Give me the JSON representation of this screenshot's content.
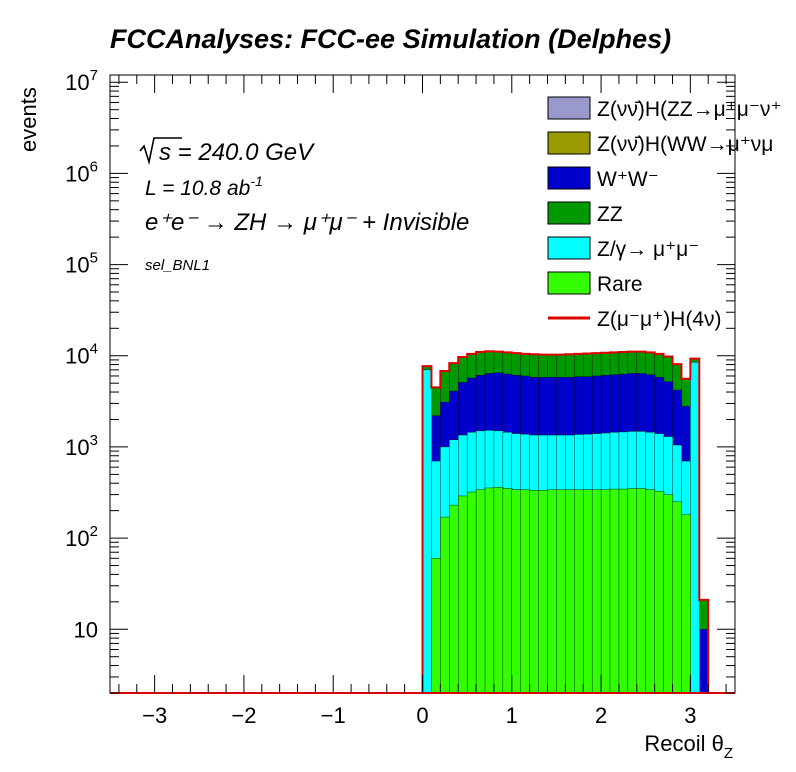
{
  "chart_data": {
    "type": "histogram-stacked",
    "title": "FCCAnalyses: FCC-ee Simulation (Delphes)",
    "xlabel": "Recoil θ",
    "xlabel_sub": "Z",
    "ylabel": "events",
    "xlim": [
      -3.5,
      3.5
    ],
    "ylim": [
      2,
      12000000
    ],
    "yscale": "log",
    "x_ticks": [
      -3,
      -2,
      -1,
      0,
      1,
      2,
      3
    ],
    "x_tick_labels": [
      "−3",
      "−2",
      "−1",
      "0",
      "1",
      "2",
      "3"
    ],
    "y_ticks": [
      {
        "value": 10,
        "base": "10",
        "exp": ""
      },
      {
        "value": 100,
        "base": "10",
        "exp": "2"
      },
      {
        "value": 1000,
        "base": "10",
        "exp": "3"
      },
      {
        "value": 10000,
        "base": "10",
        "exp": "4"
      },
      {
        "value": 100000,
        "base": "10",
        "exp": "5"
      },
      {
        "value": 1000000,
        "base": "10",
        "exp": "6"
      },
      {
        "value": 10000000,
        "base": "10",
        "exp": "7"
      }
    ],
    "annotations": {
      "sqrt_s": "s = 240.0 GeV",
      "lumi": "L = 10.8 ab",
      "lumi_exp": "-1",
      "process": "e⁺e⁻ → ZH → μ⁺μ⁻ + Invisible",
      "selection": "sel_BNL1"
    },
    "legend_position": "top-right",
    "legend": [
      {
        "label": "Z(νν̄)H(ZZ→μ⁺μ⁻ν⁺",
        "color": "#9999cc",
        "kind": "fill"
      },
      {
        "label": "Z(νν̄)H(WW→μ⁺νμ",
        "color": "#999900",
        "kind": "fill"
      },
      {
        "label": "W⁺W⁻",
        "color": "#0000cc",
        "kind": "fill"
      },
      {
        "label": "ZZ",
        "color": "#009900",
        "kind": "fill"
      },
      {
        "label": "Z/γ→ μ⁺μ⁻",
        "color": "#00ffff",
        "kind": "fill"
      },
      {
        "label": "Rare",
        "color": "#33ff00",
        "kind": "fill"
      },
      {
        "label": "Z(μ⁻μ⁺)H(4ν)",
        "color": "#dd0000",
        "kind": "line"
      }
    ],
    "bin_width": 0.1,
    "bins_x_low": [
      0.0,
      0.1,
      0.2,
      0.3,
      0.4,
      0.5,
      0.6,
      0.7,
      0.8,
      0.9,
      1.0,
      1.1,
      1.2,
      1.3,
      1.4,
      1.5,
      1.6,
      1.7,
      1.8,
      1.9,
      2.0,
      2.1,
      2.2,
      2.3,
      2.4,
      2.5,
      2.6,
      2.7,
      2.8,
      2.9,
      3.0,
      3.1,
      3.2
    ],
    "stack_order_bottom_to_top": [
      "Rare",
      "Z/γ→ μ⁺μ⁻",
      "ZZ",
      "W⁺W⁻"
    ],
    "cumulative_tops": {
      "Rare": [
        0,
        60,
        170,
        230,
        290,
        320,
        340,
        355,
        360,
        350,
        340,
        340,
        335,
        335,
        340,
        340,
        340,
        340,
        340,
        340,
        340,
        345,
        345,
        350,
        350,
        340,
        325,
        300,
        250,
        180,
        0,
        0,
        0
      ],
      "Z/γ→ μ⁺μ⁻": [
        7000,
        2200,
        3100,
        4100,
        5100,
        5700,
        6100,
        6400,
        6500,
        6300,
        6100,
        6000,
        5800,
        5800,
        5800,
        5800,
        5800,
        5900,
        5900,
        6000,
        6100,
        6200,
        6300,
        6400,
        6400,
        6200,
        5800,
        5200,
        4200,
        2800,
        8500,
        0,
        0
      ],
      "ZZ": [
        7000,
        2200,
        3100,
        4100,
        5100,
        5700,
        6100,
        6400,
        6500,
        6300,
        6100,
        6000,
        5800,
        5800,
        5800,
        5800,
        5800,
        5900,
        5900,
        6000,
        6100,
        6200,
        6300,
        6400,
        6400,
        6200,
        5800,
        5200,
        4200,
        2800,
        8500,
        10,
        0
      ],
      "W⁺W⁻": [
        7700,
        4500,
        6800,
        8300,
        9700,
        10500,
        11000,
        11200,
        11100,
        10900,
        10700,
        10500,
        10400,
        10300,
        10300,
        10300,
        10400,
        10500,
        10600,
        10700,
        10800,
        10900,
        11000,
        11100,
        11100,
        10900,
        10500,
        9800,
        8100,
        5600,
        9300,
        21,
        0
      ]
    },
    "lower_layer_tops": {
      "Rare": [
        0,
        60,
        170,
        230,
        290,
        320,
        340,
        355,
        360,
        350,
        340,
        340,
        335,
        335,
        340,
        340,
        340,
        340,
        340,
        340,
        340,
        345,
        345,
        350,
        350,
        340,
        325,
        300,
        250,
        180,
        0,
        0,
        0
      ],
      "Z/γ→ μ⁺μ⁻": [
        7000,
        700,
        1000,
        1200,
        1350,
        1450,
        1500,
        1520,
        1500,
        1450,
        1400,
        1380,
        1350,
        1350,
        1350,
        1350,
        1350,
        1370,
        1380,
        1400,
        1420,
        1450,
        1460,
        1480,
        1480,
        1450,
        1400,
        1300,
        1050,
        700,
        8500,
        0,
        0
      ],
      "W⁺W⁻": [
        7000,
        2200,
        3100,
        4100,
        5100,
        5700,
        6100,
        6400,
        6500,
        6300,
        6100,
        6000,
        5800,
        5800,
        5800,
        5800,
        5800,
        5900,
        5900,
        6000,
        6100,
        6200,
        6300,
        6400,
        6400,
        6200,
        5800,
        5200,
        4200,
        2800,
        8500,
        10,
        0
      ],
      "ZZ": [
        7700,
        4500,
        6800,
        8300,
        9700,
        10500,
        11000,
        11200,
        11100,
        10900,
        10700,
        10500,
        10400,
        10300,
        10300,
        10300,
        10400,
        10500,
        10600,
        10700,
        10800,
        10900,
        11000,
        11100,
        11100,
        10900,
        10500,
        9800,
        8100,
        5600,
        9300,
        21,
        0
      ]
    },
    "signal_line": {
      "name": "Z(μ⁻μ⁺)H(4ν)",
      "color": "#dd0000",
      "values": [
        7700,
        4500,
        6800,
        8300,
        9700,
        10500,
        11000,
        11200,
        11100,
        10900,
        10700,
        10500,
        10400,
        10300,
        10300,
        10300,
        10400,
        10500,
        10600,
        10700,
        10800,
        10900,
        11000,
        11100,
        11100,
        10900,
        10500,
        9800,
        8100,
        5600,
        9300,
        21,
        0
      ]
    }
  }
}
